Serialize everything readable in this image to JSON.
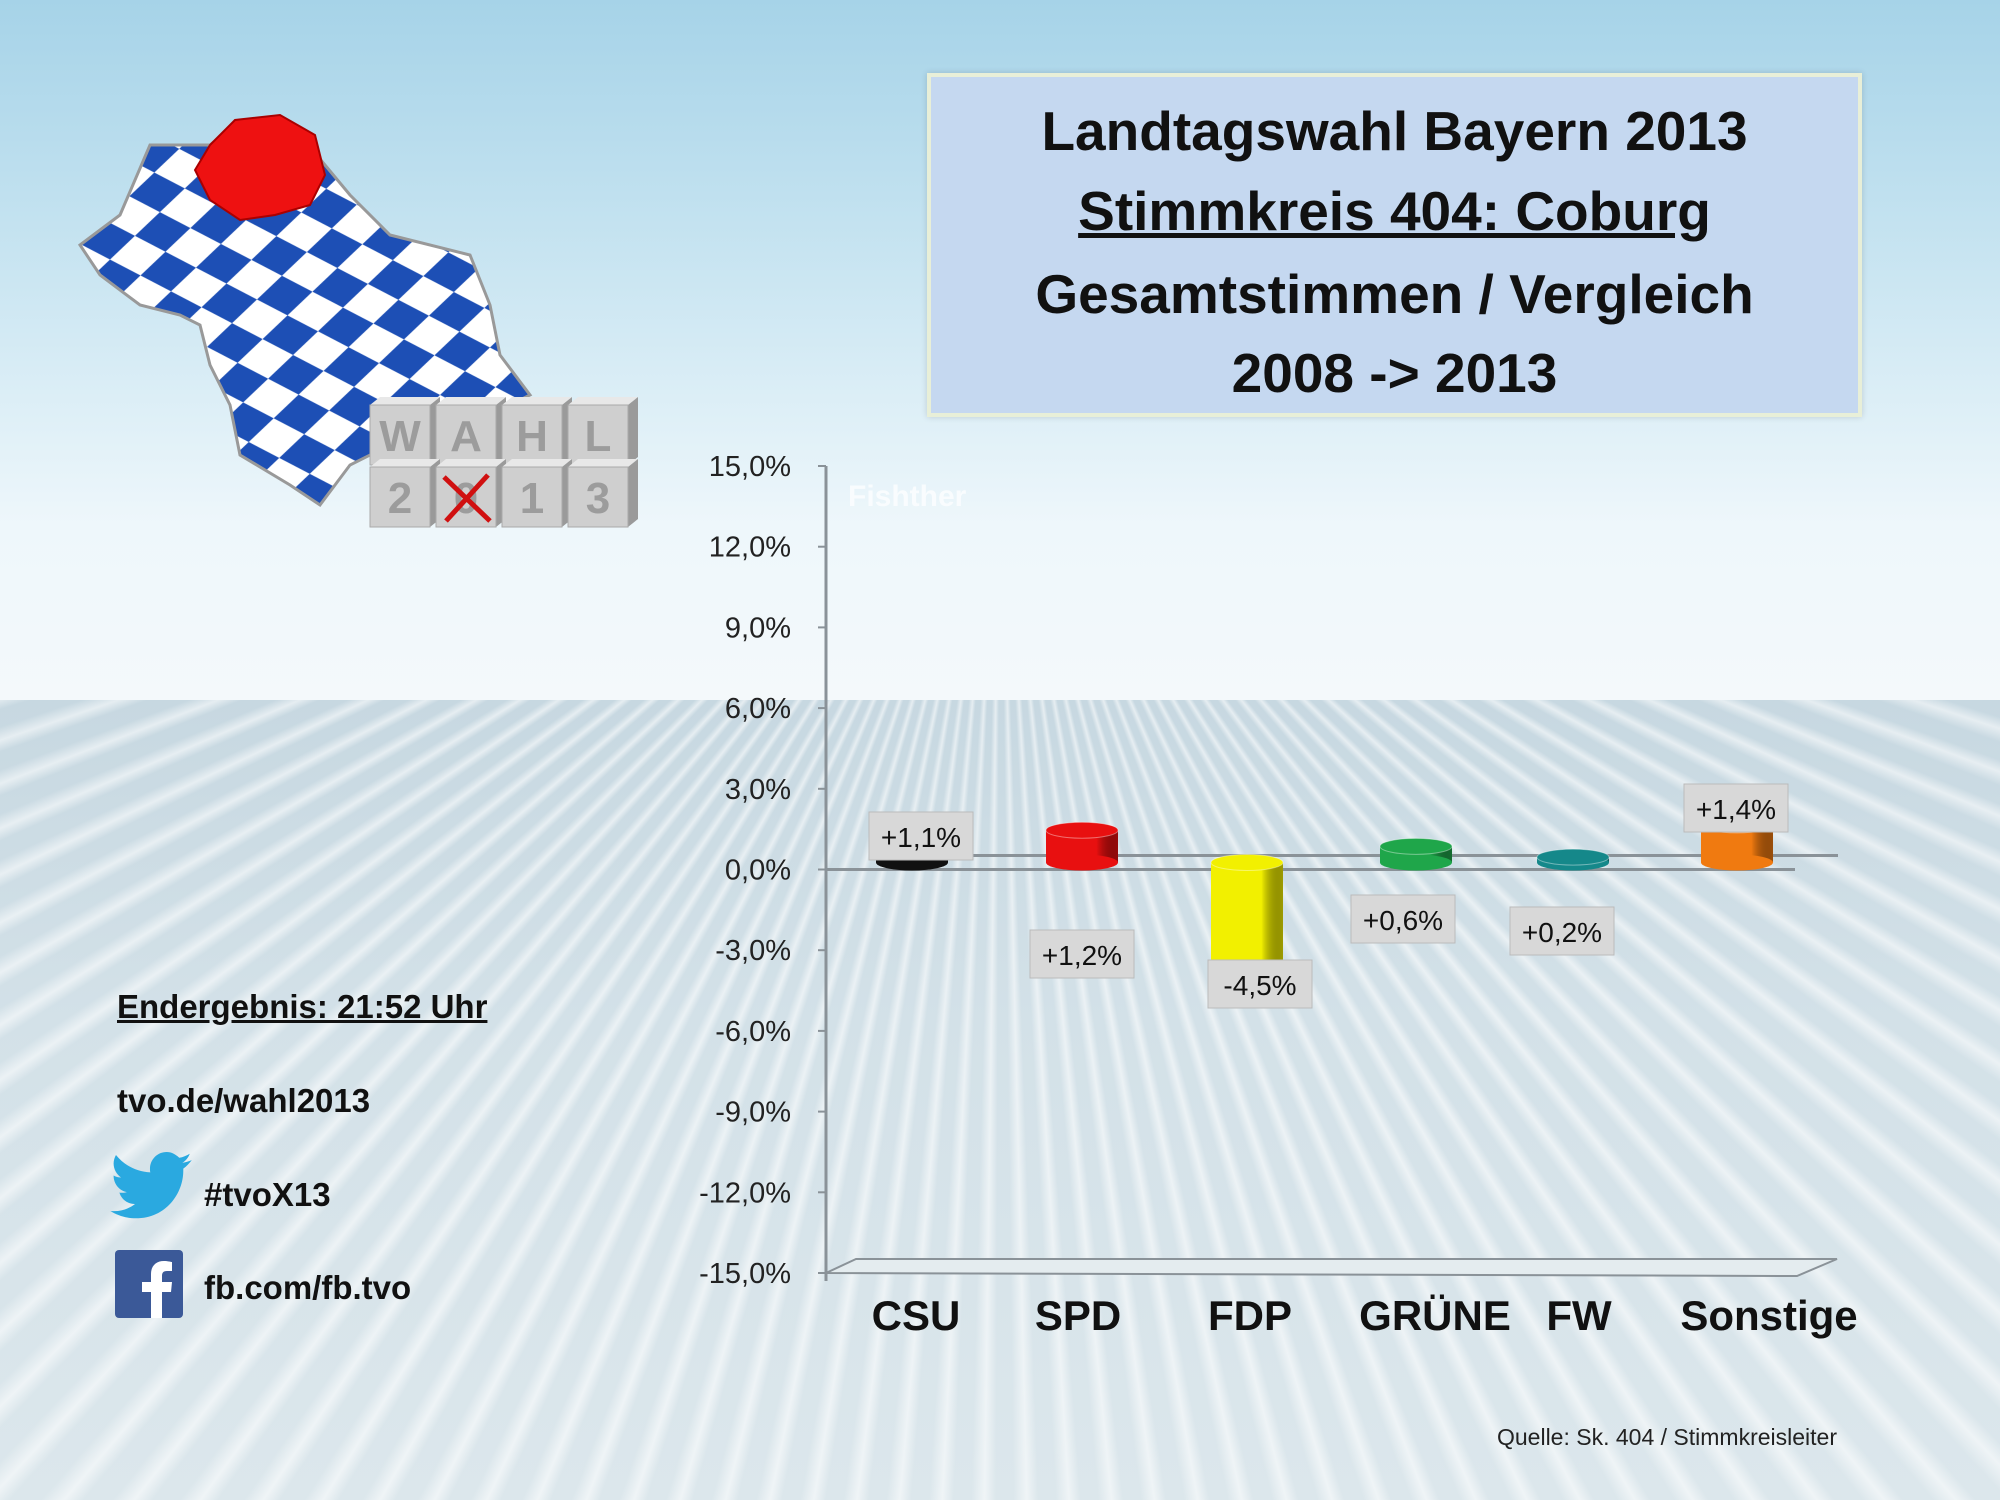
{
  "header": {
    "title_lines": [
      "Landtagswahl Bayern 2013",
      "Stimmkreis 404: Coburg",
      "Gesamtstimmen / Vergleich",
      "2008 -> 2013"
    ]
  },
  "logo": {
    "cube_letters_top": [
      "W",
      "A",
      "H",
      "L"
    ],
    "cube_letters_bottom": [
      "2",
      "0",
      "1",
      "3"
    ],
    "colors": {
      "diamond_blue": "#1d4fb5",
      "region_red": "#ee1111"
    }
  },
  "info": {
    "result_time": "Endergebnis: 21:52 Uhr",
    "website": "tvo.de/wahl2013",
    "twitter_icon": "twitter-bird-icon",
    "twitter": "#tvoX13",
    "facebook_icon": "facebook-icon",
    "facebook": "fb.com/fb.tvo"
  },
  "watermark": "Fishther",
  "source": "Quelle: Sk. 404 / Stimmkreisleiter",
  "chart_data": {
    "type": "bar",
    "style": "3d-cylinder",
    "categories": [
      "CSU",
      "SPD",
      "FDP",
      "GRÜNE",
      "FW",
      "Sonstige"
    ],
    "values": [
      1.1,
      1.2,
      -4.5,
      0.6,
      0.2,
      1.4
    ],
    "data_labels": [
      "+1,1%",
      "+1,2%",
      "-4,5%",
      "+0,6%",
      "+0,2%",
      "+1,4%"
    ],
    "colors": [
      "#111111",
      "#e81010",
      "#f2f000",
      "#1fa64a",
      "#15888a",
      "#f07a10"
    ],
    "ylim": [
      -15,
      15
    ],
    "ytick_values": [
      15,
      12,
      9,
      6,
      3,
      0,
      -3,
      -6,
      -9,
      -12,
      -15
    ],
    "ytick_labels": [
      "15,0%",
      "12,0%",
      "9,0%",
      "6,0%",
      "3,0%",
      "0,0%",
      "-3,0%",
      "-6,0%",
      "-9,0%",
      "-12,0%",
      "-15,0%"
    ],
    "grid": false,
    "legend": "none"
  }
}
